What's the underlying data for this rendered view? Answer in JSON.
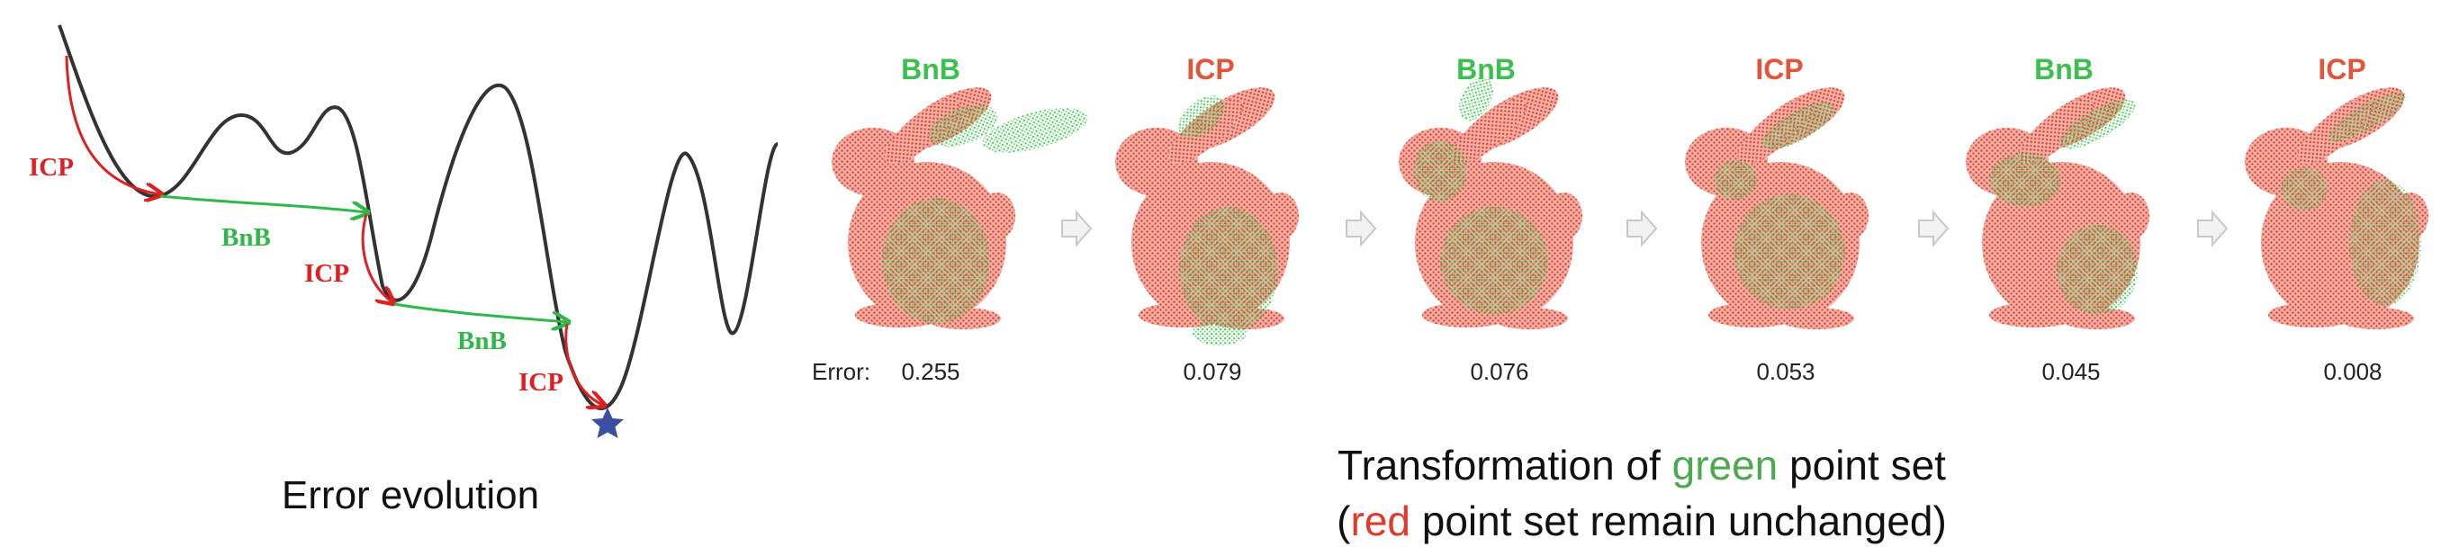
{
  "curve_panel": {
    "caption": "Error evolution",
    "labels": {
      "icp_1": "ICP",
      "bnb_1": "BnB",
      "icp_2": "ICP",
      "bnb_2": "BnB",
      "icp_3": "ICP"
    },
    "colors": {
      "curve": "#333333",
      "icp": "#e02020",
      "bnb": "#2fb84a",
      "star": "#3a4fa0"
    },
    "star_icon": "star-icon"
  },
  "bunny_panel": {
    "steps": [
      {
        "method": "BnB",
        "error": "0.255"
      },
      {
        "method": "ICP",
        "error": "0.079"
      },
      {
        "method": "BnB",
        "error": "0.076"
      },
      {
        "method": "ICP",
        "error": "0.053"
      },
      {
        "method": "BnB",
        "error": "0.045"
      },
      {
        "method": "ICP",
        "error": "0.008"
      }
    ],
    "error_label": "Error:",
    "caption": {
      "line1_before": "Transformation of ",
      "line1_highlight": "green",
      "line1_after": " point set",
      "line2_open": "(",
      "line2_highlight": "red",
      "line2_after": " point set remain unchanged)"
    },
    "colors": {
      "bnb_label": "#3cbf4e",
      "icp_label": "#e2553a",
      "red_cloud": "#e85a48",
      "green_cloud": "#3ccb4a",
      "green_word": "#4ea84e",
      "red_word": "#e03a2a"
    },
    "arrow_icon": "arrow-right-icon"
  }
}
